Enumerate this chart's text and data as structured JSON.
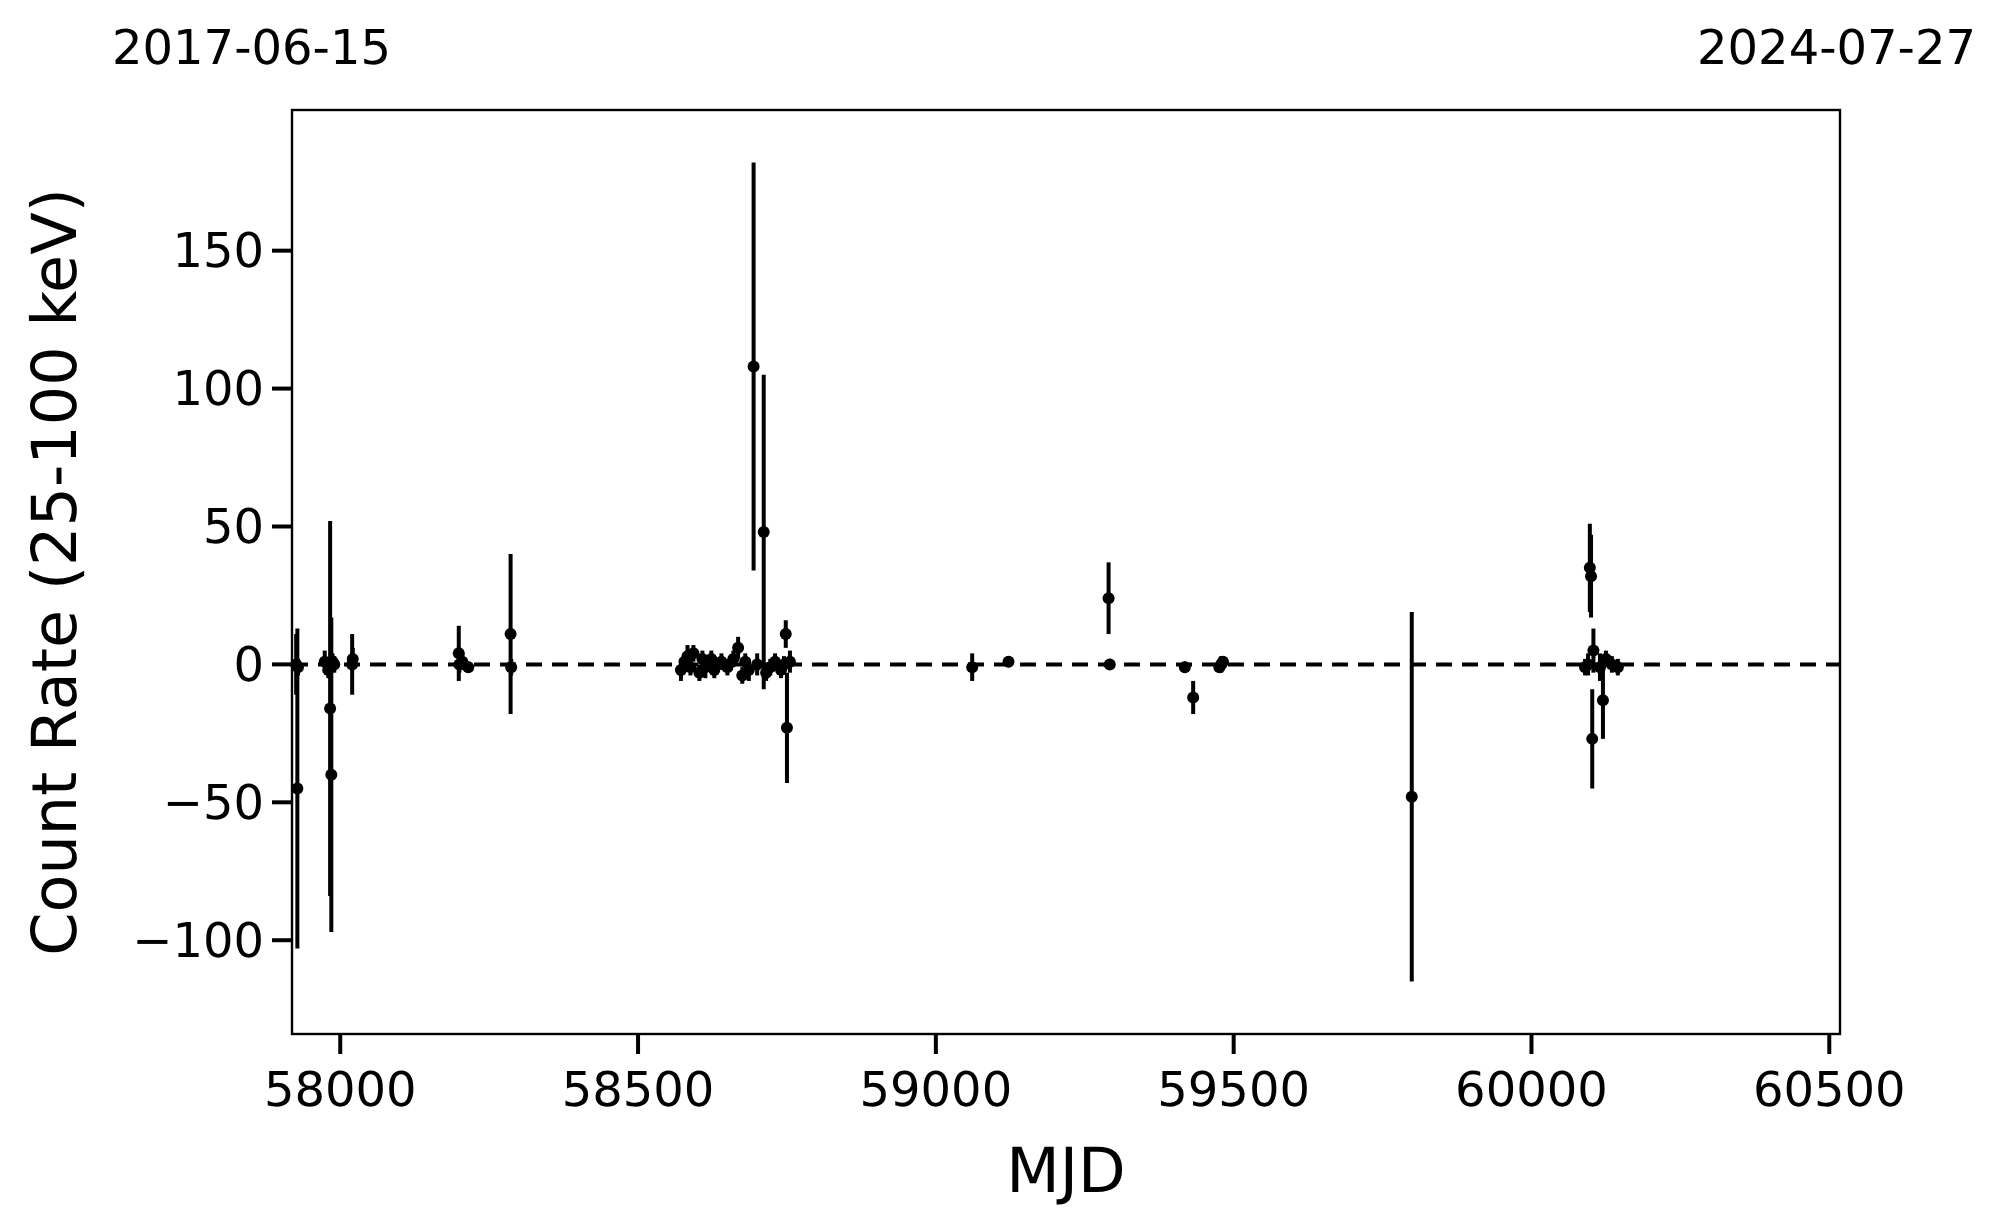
{
  "chart_data": {
    "type": "scatter",
    "xlabel": "MJD",
    "ylabel": "Count Rate (25-100 keV)",
    "annotations": [
      "2017-06-15",
      "2024-07-27"
    ],
    "xlim": [
      57919,
      60518
    ],
    "ylim": [
      -134,
      201
    ],
    "xticks": [
      58000,
      58500,
      59000,
      59500,
      60000,
      60500
    ],
    "yticks": [
      {
        "value": -100,
        "label": "−100"
      },
      {
        "value": -50,
        "label": "−50"
      },
      0,
      50,
      100,
      150
    ],
    "grid": false,
    "marker": "circle",
    "ref_lines": [
      {
        "axis": "y",
        "value": 0,
        "color": "#000000",
        "line_style": "dashed"
      }
    ],
    "series": [
      {
        "color": "#000000",
        "x": [
          57926,
          57928,
          57929,
          57974,
          57980,
          57983,
          57985,
          57987,
          57990,
          58020,
          58021,
          58199,
          58200,
          58205,
          58215,
          58286,
          58287,
          58572,
          58578,
          58583,
          58588,
          58593,
          58603,
          58608,
          58613,
          58623,
          58628,
          58640,
          58650,
          58660,
          58668,
          58675,
          58680,
          58686,
          58694,
          58700,
          58711,
          58715,
          58722,
          58730,
          58740,
          58745,
          58748,
          58750,
          58755,
          59061,
          59122,
          59290,
          59292,
          59418,
          59432,
          59476,
          59479,
          59482,
          59799,
          60090,
          60095,
          60098,
          60100,
          60102,
          60104,
          60115,
          60120,
          60125,
          60135,
          60145
        ],
        "values": [
          0,
          -45,
          -1,
          1,
          -2,
          -16,
          -40,
          1,
          0,
          0,
          2,
          4,
          0,
          1,
          -1,
          11,
          -1,
          -2,
          1,
          3,
          -1,
          4,
          -3,
          2,
          -1,
          2,
          -2,
          1,
          -1,
          2,
          6,
          -4,
          1,
          -2,
          108,
          0,
          48,
          -3,
          -1,
          1,
          -2,
          0,
          11,
          -23,
          1,
          -1,
          1,
          24,
          0,
          -1,
          -12,
          -1,
          0,
          1,
          -48,
          -1,
          0,
          35,
          32,
          -27,
          5,
          -1,
          -13,
          2,
          0,
          -1
        ],
        "errors": [
          11,
          58,
          3,
          4,
          3,
          68,
          57,
          3,
          3,
          11,
          4,
          10,
          3,
          3,
          2,
          29,
          3,
          4,
          3,
          4,
          3,
          3,
          3,
          3,
          4,
          3,
          3,
          3,
          3,
          3,
          4,
          3,
          3,
          4,
          74,
          4,
          57,
          3,
          3,
          3,
          3,
          3,
          5,
          20,
          4,
          5,
          2,
          13,
          2,
          2,
          6,
          2,
          3,
          2,
          67,
          3,
          4,
          16,
          15,
          18,
          8,
          5,
          14,
          3,
          3,
          3
        ]
      }
    ]
  }
}
